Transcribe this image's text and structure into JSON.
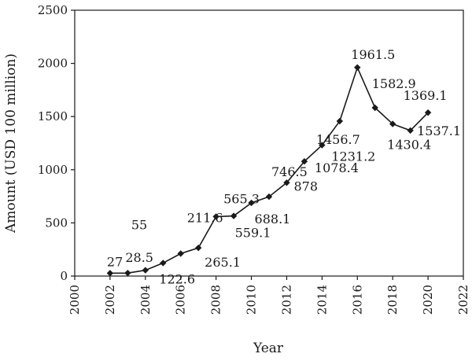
{
  "chart_data": {
    "type": "line",
    "title": "",
    "xlabel": "Year",
    "ylabel": "Amount (USD 100 million)",
    "xlim": [
      2000,
      2022
    ],
    "ylim": [
      0,
      2500
    ],
    "x_ticks": [
      2000,
      2002,
      2004,
      2006,
      2008,
      2010,
      2012,
      2014,
      2016,
      2018,
      2020,
      2022
    ],
    "y_ticks": [
      0,
      500,
      1000,
      1500,
      2000,
      2500
    ],
    "grid": false,
    "legend": "none",
    "series": [
      {
        "marker": "diamond",
        "color": "#1a1a1a",
        "x": [
          2002,
          2003,
          2004,
          2005,
          2006,
          2007,
          2008,
          2009,
          2010,
          2011,
          2012,
          2013,
          2014,
          2015,
          2016,
          2017,
          2018,
          2019,
          2020
        ],
        "values": [
          27,
          28.5,
          55,
          122.6,
          211.6,
          265.1,
          559.1,
          565.3,
          688.1,
          746.5,
          878,
          1078.4,
          1231.2,
          1456.7,
          1961.5,
          1582.9,
          1430.4,
          1369.1,
          1537.1
        ]
      }
    ],
    "data_labels": [
      "27",
      "28.5",
      "55",
      "122.6",
      "211.6",
      "265.1",
      "559.1",
      "565.3",
      "688.1",
      "746.5",
      "878",
      "1078.4",
      "1231.2",
      "1456.7",
      "1961.5",
      "1582.9",
      "1430.4",
      "1369.1",
      "1537.1"
    ]
  }
}
